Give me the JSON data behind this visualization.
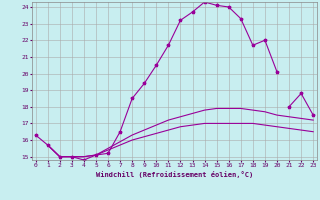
{
  "xlabel": "Windchill (Refroidissement éolien,°C)",
  "bg_color": "#c8eef0",
  "line_color": "#990099",
  "grid_color": "#aaaaaa",
  "xmin": 0,
  "xmax": 23,
  "ymin": 15,
  "ymax": 24,
  "lines": [
    {
      "x": [
        0,
        1,
        2,
        3,
        4,
        5,
        6,
        7,
        8,
        9,
        10,
        11,
        12,
        13,
        14,
        15,
        16,
        17,
        18,
        19,
        20
      ],
      "y": [
        16.3,
        15.7,
        15.0,
        15.0,
        14.8,
        15.1,
        15.2,
        16.5,
        18.5,
        19.4,
        20.5,
        21.7,
        23.2,
        23.7,
        24.3,
        24.1,
        24.0,
        23.3,
        21.7,
        22.0,
        20.1
      ],
      "marker": true
    },
    {
      "x": [
        21,
        22,
        23
      ],
      "y": [
        18.0,
        18.8,
        17.5
      ],
      "marker": true
    },
    {
      "x": [
        1,
        2,
        3,
        4,
        5,
        6,
        7,
        8,
        9,
        10,
        11,
        12,
        13,
        14,
        15,
        16,
        17,
        18,
        19,
        20,
        21,
        22,
        23
      ],
      "y": [
        15.7,
        15.0,
        15.0,
        15.0,
        15.1,
        15.5,
        15.9,
        16.3,
        16.6,
        16.9,
        17.2,
        17.4,
        17.6,
        17.8,
        17.9,
        17.9,
        17.9,
        17.8,
        17.7,
        17.5,
        17.4,
        17.3,
        17.2
      ],
      "marker": false
    },
    {
      "x": [
        1,
        2,
        3,
        4,
        5,
        6,
        7,
        8,
        9,
        10,
        11,
        12,
        13,
        14,
        15,
        16,
        17,
        18,
        19,
        20,
        21,
        22,
        23
      ],
      "y": [
        15.7,
        15.0,
        15.0,
        15.0,
        15.1,
        15.4,
        15.7,
        16.0,
        16.2,
        16.4,
        16.6,
        16.8,
        16.9,
        17.0,
        17.0,
        17.0,
        17.0,
        17.0,
        16.9,
        16.8,
        16.7,
        16.6,
        16.5
      ],
      "marker": false
    }
  ]
}
